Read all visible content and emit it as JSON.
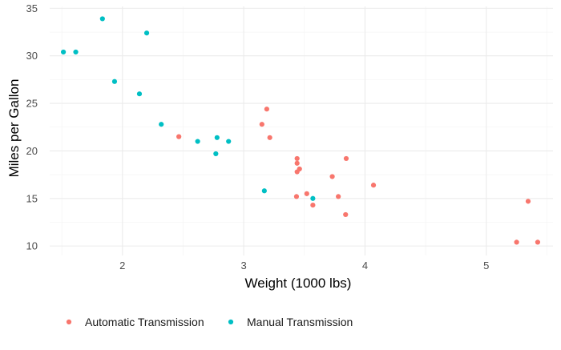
{
  "chart_data": {
    "type": "scatter",
    "title": "",
    "xlabel": "Weight (1000 lbs)",
    "ylabel": "Miles per Gallon",
    "xlim": [
      1.4,
      5.55
    ],
    "ylim": [
      9,
      35.2
    ],
    "xticks": [
      2,
      3,
      4,
      5
    ],
    "yticks": [
      10,
      15,
      20,
      25,
      30,
      35
    ],
    "x_minor": [
      1.5,
      2.5,
      3.5,
      4.5,
      5.5
    ],
    "y_minor": [
      12.5,
      17.5,
      22.5,
      27.5,
      32.5
    ],
    "grid": true,
    "legend_position": "bottom",
    "series": [
      {
        "name": "Automatic Transmission",
        "color": "#f8766d",
        "points": [
          [
            3.215,
            21.4
          ],
          [
            3.44,
            18.7
          ],
          [
            3.46,
            18.1
          ],
          [
            3.57,
            14.3
          ],
          [
            3.19,
            24.4
          ],
          [
            3.15,
            22.8
          ],
          [
            3.44,
            19.2
          ],
          [
            3.44,
            17.8
          ],
          [
            4.07,
            16.4
          ],
          [
            3.73,
            17.3
          ],
          [
            3.78,
            15.2
          ],
          [
            5.25,
            10.4
          ],
          [
            5.424,
            10.4
          ],
          [
            5.345,
            14.7
          ],
          [
            2.465,
            21.5
          ],
          [
            3.52,
            15.5
          ],
          [
            3.435,
            15.2
          ],
          [
            3.84,
            13.3
          ],
          [
            3.845,
            19.2
          ]
        ]
      },
      {
        "name": "Manual Transmission",
        "color": "#00bfc4",
        "points": [
          [
            2.62,
            21.0
          ],
          [
            2.875,
            21.0
          ],
          [
            2.32,
            22.8
          ],
          [
            2.2,
            32.4
          ],
          [
            1.615,
            30.4
          ],
          [
            1.835,
            33.9
          ],
          [
            1.935,
            27.3
          ],
          [
            2.14,
            26.0
          ],
          [
            1.513,
            30.4
          ],
          [
            3.17,
            15.8
          ],
          [
            2.77,
            19.7
          ],
          [
            2.78,
            21.4
          ],
          [
            3.57,
            15.0
          ]
        ]
      }
    ]
  }
}
